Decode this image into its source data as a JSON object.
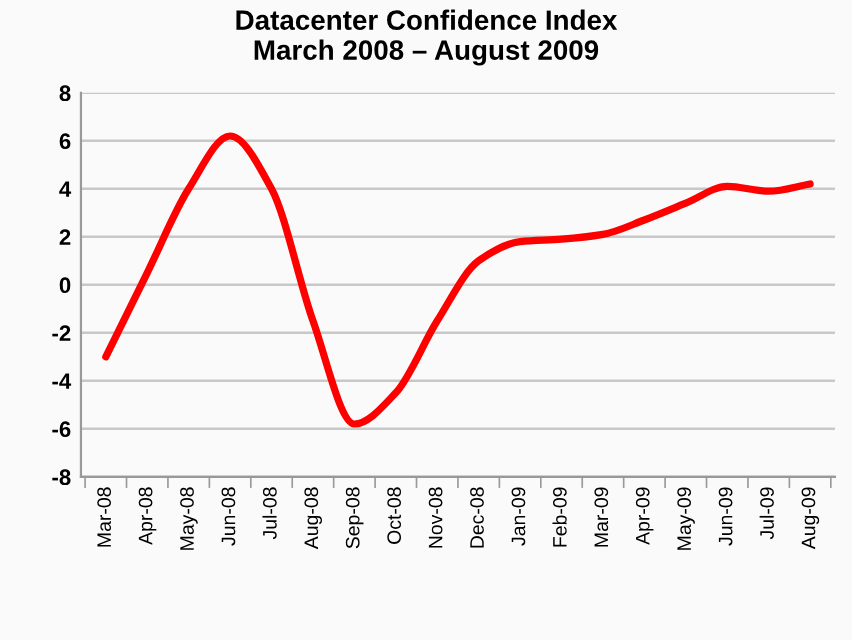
{
  "chart_data": {
    "type": "line",
    "title": "Datacenter Confidence Index\nMarch 2008 – August 2009",
    "categories": [
      "Mar-08",
      "Apr-08",
      "May-08",
      "Jun-08",
      "Jul-08",
      "Aug-08",
      "Sep-08",
      "Oct-08",
      "Nov-08",
      "Dec-08",
      "Jan-09",
      "Feb-09",
      "Mar-09",
      "Apr-09",
      "May-09",
      "Jun-09",
      "Jul-09",
      "Aug-09"
    ],
    "series": [
      {
        "color": "#ff0000",
        "values": [
          -3,
          0.5,
          4,
          6.2,
          4,
          -1.5,
          -5.8,
          -4.5,
          -1.5,
          1,
          1.8,
          1.9,
          2.1,
          2.7,
          3.4,
          4.1,
          3.9,
          4.2
        ]
      }
    ],
    "ylim": [
      -8,
      8
    ],
    "yticks": [
      -8,
      -6,
      -4,
      -2,
      0,
      2,
      4,
      6,
      8
    ],
    "grid": "y",
    "marker": "none",
    "line_style": "solid"
  }
}
